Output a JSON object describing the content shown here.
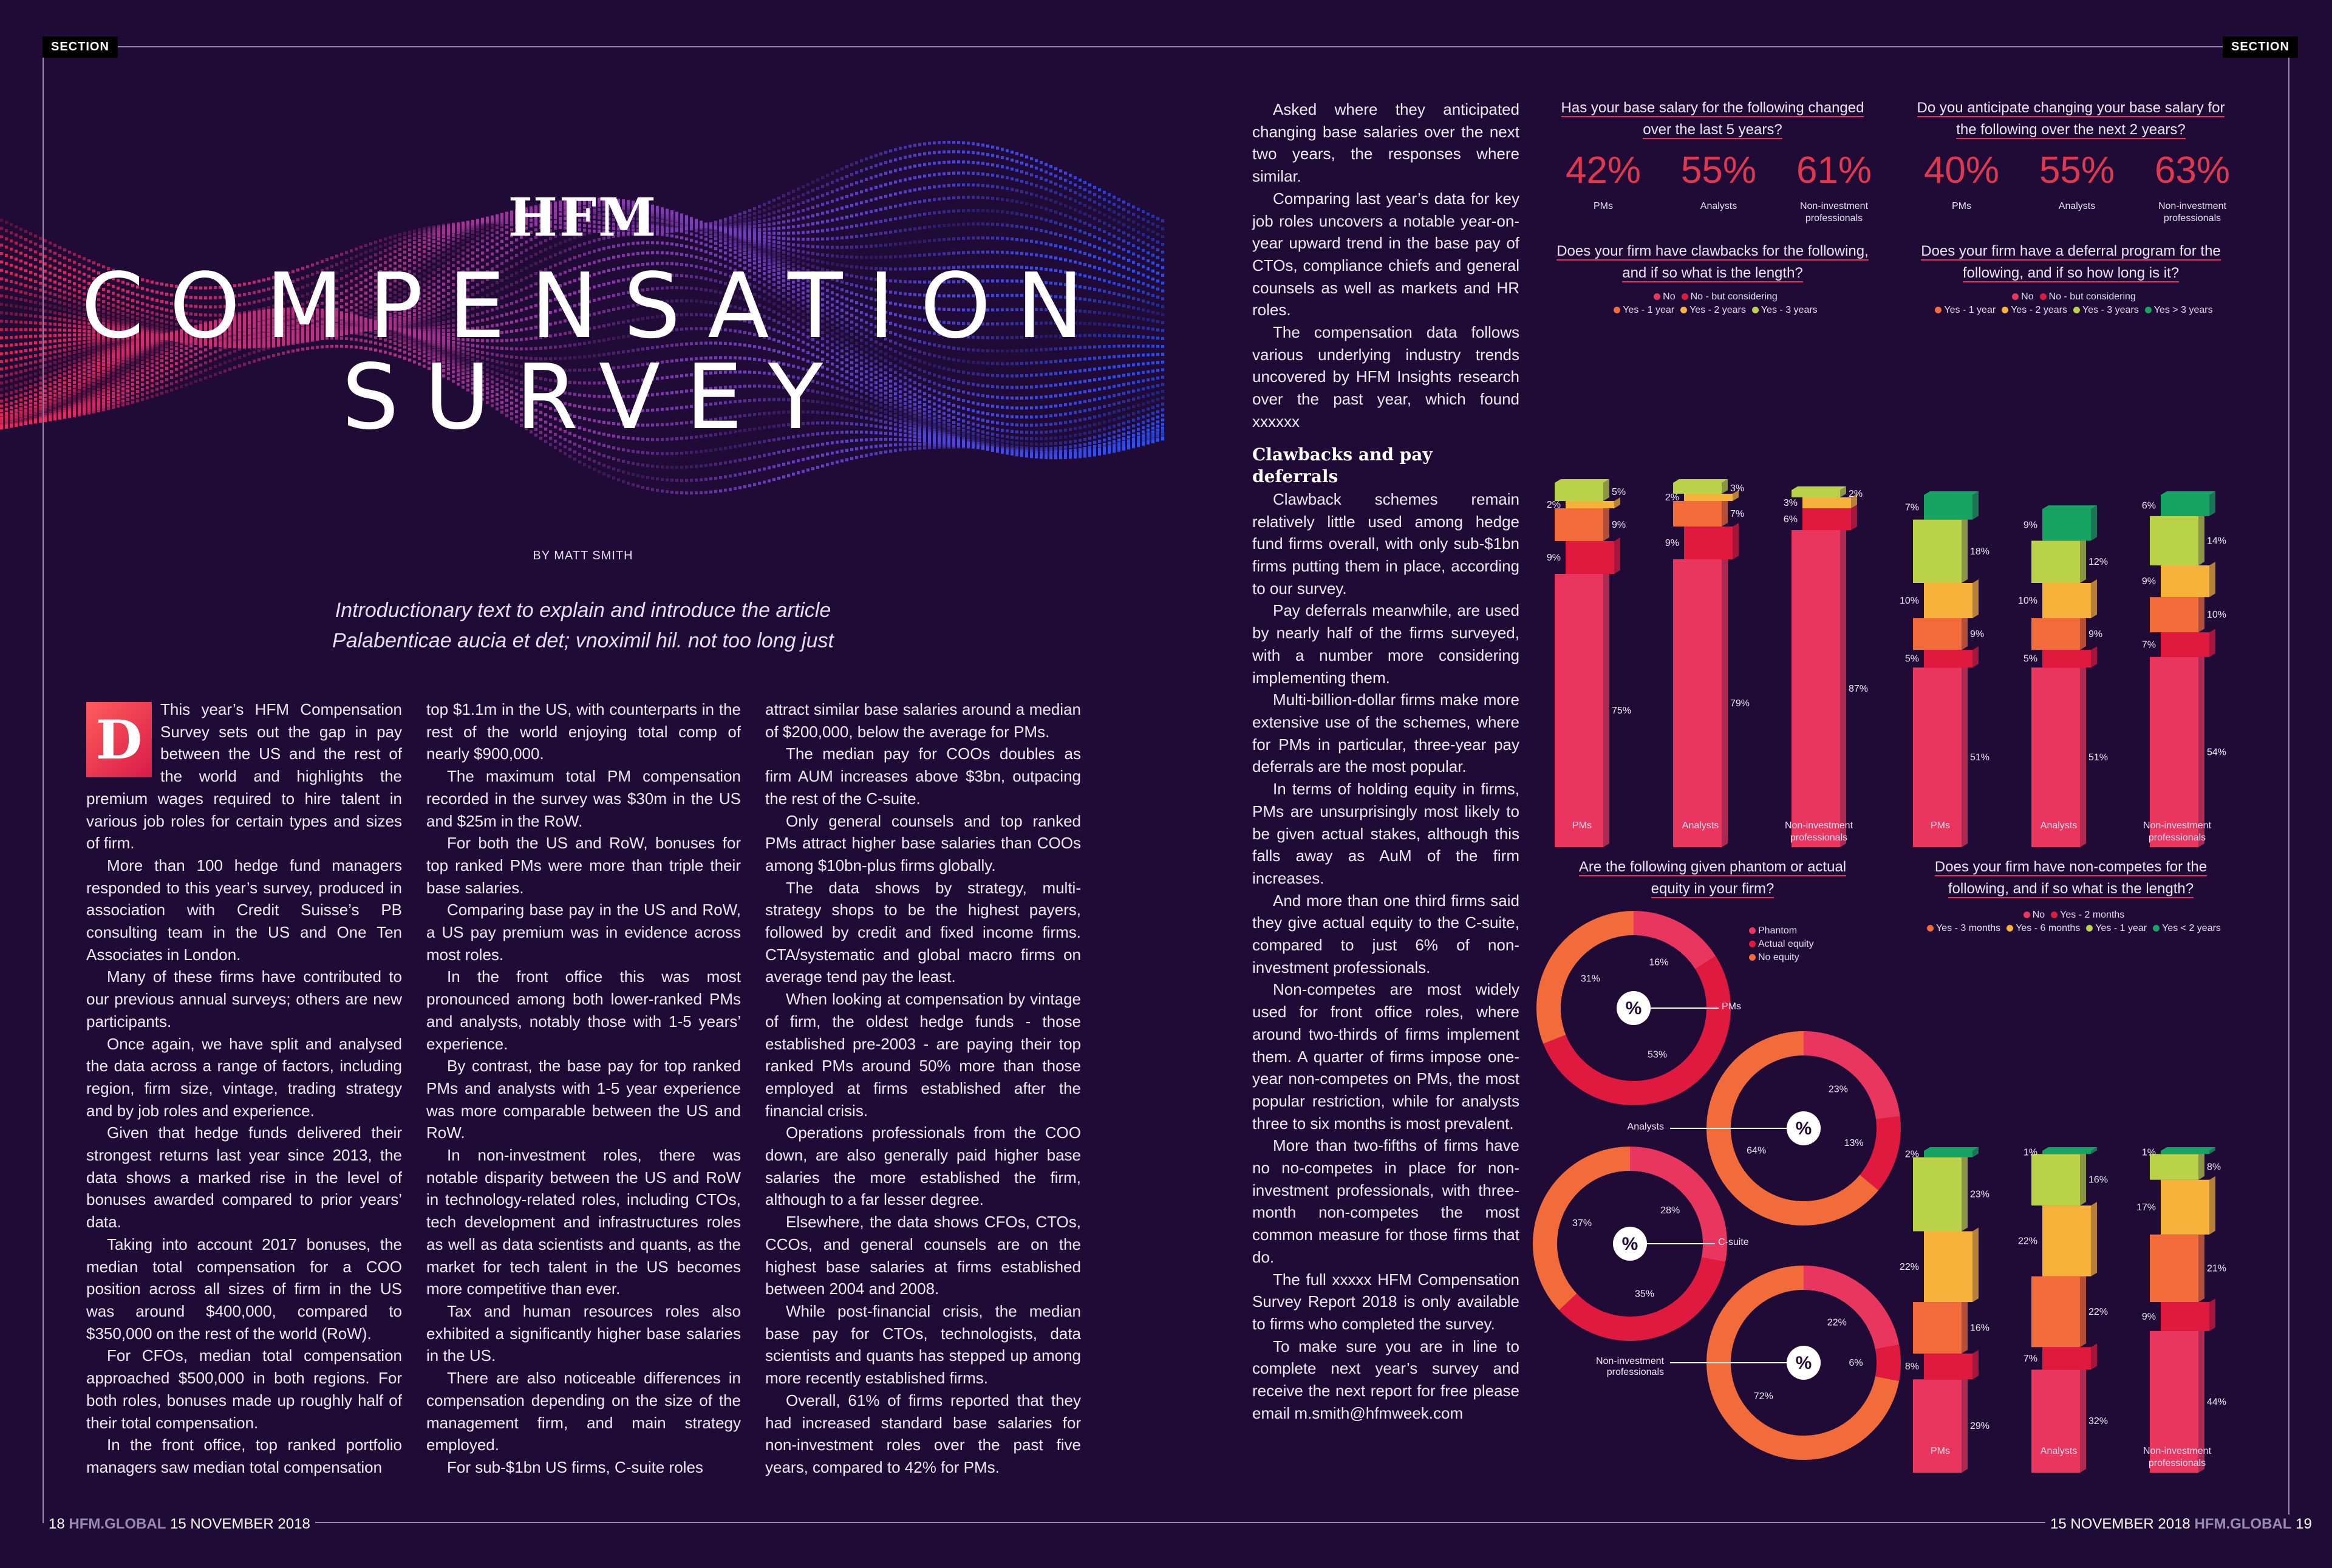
{
  "header": {
    "section_left": "SECTION",
    "section_right": "SECTION"
  },
  "hero": {
    "brand": "HFM",
    "title_line1": "COMPENSATION",
    "title_line2": "SURVEY",
    "byline": "BY MATT SMITH",
    "intro_line1": "Introductionary text to explain and introduce the article",
    "intro_line2": "Palabenticae aucia et det; vnoximil hil. not too long just"
  },
  "article": {
    "dropcap": "D",
    "col1": [
      "This year’s HFM Compensation Survey sets out the gap in pay between the US and the rest of the world and highlights the premium wages required to hire talent in various job roles for certain types and sizes of firm.",
      "More than 100 hedge fund managers responded to this year’s survey, produced in association with Credit Suisse’s PB consulting team in the US and One Ten Associates in London.",
      "Many of these firms have contributed to our previous annual surveys; others are new participants.",
      "Once again, we have split and analysed the data across a range of factors, including region, firm size, vintage, trading strategy and by job roles and experience.",
      "Given that hedge funds delivered their strongest returns last year since 2013, the data shows a marked rise in the level of bonuses awarded compared to prior years’ data.",
      "Taking into account 2017 bonuses, the median total compensation for a COO position across all sizes of firm in the US was around $400,000, compared to $350,000 on the rest of the world (RoW).",
      "For CFOs, median total compensation approached $500,000 in both regions. For both roles, bonuses made up roughly half of their total compensation.",
      "In the front office, top ranked portfolio managers saw median total compensation"
    ],
    "col2": [
      "top $1.1m in the US, with counterparts in the rest of the world enjoying total comp of nearly $900,000.",
      "The maximum total PM compensation recorded in the survey was $30m in the US and $25m in the RoW.",
      "For both the US and RoW, bonuses for top ranked PMs were more than triple their base salaries.",
      "Comparing base pay in the US and RoW, a US pay premium was in evidence across most roles.",
      "In the front office this was most pronounced among both lower-ranked PMs and analysts, notably those with 1-5 years’ experience.",
      "By contrast, the base pay for top ranked PMs and analysts with 1-5 year experience was more comparable between the US and RoW.",
      "In non-investment roles, there was notable disparity between the US and RoW in technology-related roles, including CTOs, tech development and infrastructures roles as well as data scientists and quants, as the market for tech talent in the US becomes more competitive than ever.",
      "Tax and human resources roles also exhibited a significantly higher base salaries in the US.",
      "There are also noticeable differences in compensation depending on the size of the management firm, and main strategy employed.",
      "For sub-$1bn US firms, C-suite roles"
    ],
    "col3": [
      "attract similar base salaries around a median of $200,000, below the average for PMs.",
      "The median pay for COOs doubles as firm AUM increases above $3bn, outpacing the rest of the C-suite.",
      "Only general counsels and top ranked PMs attract higher base salaries than COOs among $10bn-plus firms globally.",
      "The data shows by strategy, multi-strategy shops to be the highest payers, followed by credit and fixed income firms. CTA/systematic and global macro firms on average tend pay the least.",
      "When looking at compensation by vintage of firm, the oldest hedge funds - those established pre-2003 - are paying their top ranked PMs around 50% more than those employed at firms established after the financial crisis.",
      "Operations professionals from the COO down, are also generally paid higher base salaries the more established the firm, although to a far lesser degree.",
      "Elsewhere, the data shows CFOs, CTOs, CCOs, and general counsels are on the highest base salaries at firms established between 2004 and 2008.",
      "While post-financial crisis, the median base pay for CTOs, technologists, data scientists and quants has stepped up among more recently established firms.",
      "Overall, 61% of firms reported that they had increased standard base salaries for non-investment roles over the past five years, compared to 42% for PMs."
    ],
    "col4a": [
      "Asked where they anticipated changing base salaries over the next two years, the responses where similar.",
      "Comparing last year’s data for key job roles uncovers a notable year-on-year upward trend in the base pay of CTOs, compliance chiefs and general counsels as well as markets and HR roles.",
      "The compensation data follows various underlying industry trends uncovered by HFM Insights research over the past year, which found xxxxxx"
    ],
    "col4_heading": "Clawbacks and pay deferrals",
    "col4b": [
      "Clawback schemes remain relatively little used among hedge fund firms overall, with only sub-$1bn firms putting them in place, according to our survey.",
      "Pay deferrals meanwhile, are used by nearly half of the firms surveyed, with a number more considering implementing them.",
      "Multi-billion-dollar firms make more extensive use of the schemes, where for PMs in particular, three-year pay deferrals are the most popular.",
      "In terms of holding equity in firms, PMs are unsurprisingly most likely to be given actual stakes, although this falls away as AuM of the firm increases.",
      "And more than one third firms said they give actual equity to the C-suite, compared to just 6% of non-investment professionals.",
      "Non-competes are most widely used for front office roles, where around two-thirds of firms implement them. A quarter of firms impose one-year non-competes on PMs, the most popular restriction, while for analysts three to six months is most prevalent.",
      "More than two-fifths of firms have no no-competes in place for non-investment professionals, with three-month non-competes the most common measure for those firms that do.",
      "The full xxxxx HFM Compensation Survey Report 2018 is only available to firms who completed the survey.",
      "To make sure you are in line to complete next year’s survey and receive the next report for free please email m.smith@hfmweek.com"
    ]
  },
  "footer": {
    "left_page": "18",
    "left_brand": "HFM.GLOBAL",
    "left_date": "15 NOVEMBER 2018",
    "right_date": "15 NOVEMBER 2018",
    "right_brand": "HFM.GLOBAL",
    "right_page": "19"
  },
  "colors": {
    "no": "#e8365e",
    "considering": "#e01a3f",
    "y1": "#f26b3a",
    "y2": "#f7b23b",
    "y3": "#b9d24a",
    "y3plus": "#17a463"
  },
  "chart_data": [
    {
      "type": "table",
      "title": "Has your base salary for the following changed over the last 5 years?",
      "categories": [
        "PMs",
        "Analysts",
        "Non-investment professionals"
      ],
      "values_label": [
        "42%",
        "55%",
        "61%"
      ],
      "values": [
        42,
        55,
        61
      ]
    },
    {
      "type": "table",
      "title": "Do you anticipate changing your base salary for the following over the next 2 years?",
      "categories": [
        "PMs",
        "Analysts",
        "Non-investment professionals"
      ],
      "values_label": [
        "40%",
        "55%",
        "63%"
      ],
      "values": [
        40,
        55,
        63
      ]
    },
    {
      "type": "bar",
      "title": "Does your firm have clawbacks for the following, and if so what is the length?",
      "categories": [
        "PMs",
        "Analysts",
        "Non-investment professionals"
      ],
      "legend": [
        "No",
        "No - but considering",
        "Yes - 1 year",
        "Yes - 2 years",
        "Yes - 3 years"
      ],
      "series": [
        {
          "name": "No",
          "values": [
            75,
            79,
            87
          ]
        },
        {
          "name": "No - but considering",
          "values": [
            9,
            9,
            6
          ]
        },
        {
          "name": "Yes - 1 year",
          "values": [
            9,
            7,
            0
          ]
        },
        {
          "name": "Yes - 2 years",
          "values": [
            2,
            2,
            3
          ]
        },
        {
          "name": "Yes - 3 years",
          "values": [
            5,
            3,
            2
          ]
        }
      ],
      "labels": [
        [
          "75%",
          "9%",
          "9%",
          "2%",
          "5%"
        ],
        [
          "79%",
          "9%",
          "7%",
          "2%",
          "3%"
        ],
        [
          "87%",
          "6%",
          "",
          "3%",
          "2%"
        ]
      ],
      "extra_labels": [
        "2%",
        "2%",
        "2%"
      ]
    },
    {
      "type": "bar",
      "title": "Does your firm have a deferral program for the following, and if so how long is it?",
      "categories": [
        "PMs",
        "Analysts",
        "Non-investment professionals"
      ],
      "legend": [
        "No",
        "No - but considering",
        "Yes - 1 year",
        "Yes - 2 years",
        "Yes - 3 years",
        "Yes > 3 years"
      ],
      "series": [
        {
          "name": "No",
          "values": [
            51,
            51,
            54
          ]
        },
        {
          "name": "No - but considering",
          "values": [
            5,
            5,
            7
          ]
        },
        {
          "name": "Yes - 1 year",
          "values": [
            9,
            9,
            10
          ]
        },
        {
          "name": "Yes - 2 years",
          "values": [
            10,
            10,
            9
          ]
        },
        {
          "name": "Yes - 3 years",
          "values": [
            18,
            12,
            14
          ]
        },
        {
          "name": "Yes > 3 years",
          "values": [
            7,
            9,
            6
          ]
        }
      ]
    },
    {
      "type": "pie",
      "title": "Are the following given phantom or actual equity in your firm?",
      "legend": [
        "Phantom",
        "Actual equity",
        "No equity"
      ],
      "center_symbol": "%",
      "rings": [
        {
          "name": "PMs",
          "values": [
            16,
            53,
            31
          ],
          "labels": [
            "16%",
            "53%",
            "31%"
          ]
        },
        {
          "name": "Analysts",
          "values": [
            23,
            13,
            64
          ],
          "labels": [
            "23%",
            "13%",
            "64%"
          ]
        },
        {
          "name": "C-suite",
          "values": [
            28,
            35,
            37
          ],
          "labels": [
            "28%",
            "35%",
            "37%"
          ]
        },
        {
          "name": "Non-investment professionals",
          "values": [
            22,
            6,
            72
          ],
          "labels": [
            "22%",
            "6%",
            "72%"
          ]
        }
      ]
    },
    {
      "type": "bar",
      "title": "Does your firm have non-competes for the following, and if so what is the length?",
      "categories": [
        "PMs",
        "Analysts",
        "Non-investment professionals"
      ],
      "legend": [
        "No",
        "Yes - 2 months",
        "Yes - 3 months",
        "Yes - 6 months",
        "Yes - 1 year",
        "Yes < 2 years"
      ],
      "series": [
        {
          "name": "No",
          "values": [
            29,
            32,
            44
          ]
        },
        {
          "name": "Yes - 2 months",
          "values": [
            8,
            7,
            9
          ]
        },
        {
          "name": "Yes - 3 months",
          "values": [
            16,
            22,
            21
          ]
        },
        {
          "name": "Yes - 6 months",
          "values": [
            22,
            22,
            17
          ]
        },
        {
          "name": "Yes - 1 year",
          "values": [
            23,
            16,
            8
          ]
        },
        {
          "name": "Yes < 2 years",
          "values": [
            2,
            1,
            1
          ]
        }
      ]
    }
  ]
}
